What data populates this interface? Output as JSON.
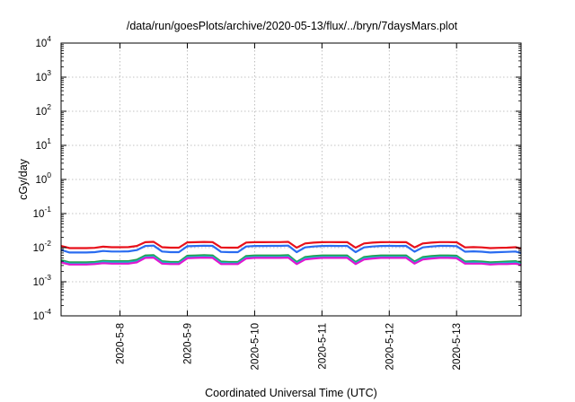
{
  "chart_data": {
    "type": "line",
    "title": "/data/run/goesPlots/archive/2020-05-13/flux/../bryn/7daysMars.plot",
    "xlabel": "Coordinated Universal Time (UTC)",
    "ylabel": "cGy/day",
    "yscale": "log",
    "ylim": [
      0.0001,
      10000
    ],
    "y_ticks": [
      {
        "base": "10",
        "exp": "-4"
      },
      {
        "base": "10",
        "exp": "-3"
      },
      {
        "base": "10",
        "exp": "-2"
      },
      {
        "base": "10",
        "exp": "-1"
      },
      {
        "base": "10",
        "exp": "0"
      },
      {
        "base": "10",
        "exp": "1"
      },
      {
        "base": "10",
        "exp": "2"
      },
      {
        "base": "10",
        "exp": "3"
      },
      {
        "base": "10",
        "exp": "4"
      }
    ],
    "x_ticks": [
      "2020-5-8",
      "2020-5-9",
      "2020-5-10",
      "2020-5-11",
      "2020-5-12",
      "2020-5-13"
    ],
    "xlim": [
      "2020-05-07 03:00",
      "2020-05-13 23:00"
    ],
    "grid": true,
    "legend": "none",
    "x": [
      "2020-05-07 03:00",
      "2020-05-07 06:00",
      "2020-05-07 09:00",
      "2020-05-07 12:00",
      "2020-05-07 15:00",
      "2020-05-07 18:00",
      "2020-05-07 21:00",
      "2020-05-08 00:00",
      "2020-05-08 03:00",
      "2020-05-08 06:00",
      "2020-05-08 09:00",
      "2020-05-08 12:00",
      "2020-05-08 15:00",
      "2020-05-08 18:00",
      "2020-05-08 21:00",
      "2020-05-09 00:00",
      "2020-05-09 03:00",
      "2020-05-09 06:00",
      "2020-05-09 09:00",
      "2020-05-09 12:00",
      "2020-05-09 15:00",
      "2020-05-09 18:00",
      "2020-05-09 21:00",
      "2020-05-10 00:00",
      "2020-05-10 03:00",
      "2020-05-10 06:00",
      "2020-05-10 09:00",
      "2020-05-10 12:00",
      "2020-05-10 15:00",
      "2020-05-10 18:00",
      "2020-05-10 21:00",
      "2020-05-11 00:00",
      "2020-05-11 03:00",
      "2020-05-11 06:00",
      "2020-05-11 09:00",
      "2020-05-11 12:00",
      "2020-05-11 15:00",
      "2020-05-11 18:00",
      "2020-05-11 21:00",
      "2020-05-12 00:00",
      "2020-05-12 03:00",
      "2020-05-12 06:00",
      "2020-05-12 09:00",
      "2020-05-12 12:00",
      "2020-05-12 15:00",
      "2020-05-12 18:00",
      "2020-05-12 21:00",
      "2020-05-13 00:00",
      "2020-05-13 03:00",
      "2020-05-13 06:00",
      "2020-05-13 09:00",
      "2020-05-13 12:00",
      "2020-05-13 15:00",
      "2020-05-13 18:00",
      "2020-05-13 21:00",
      "2020-05-13 23:00"
    ],
    "series": [
      {
        "color": "#e8101a",
        "values": [
          0.0112,
          0.0097,
          0.0097,
          0.0097,
          0.0099,
          0.0107,
          0.0103,
          0.0103,
          0.0104,
          0.0112,
          0.0145,
          0.0148,
          0.0103,
          0.01,
          0.01,
          0.0143,
          0.0145,
          0.0147,
          0.0146,
          0.0101,
          0.01,
          0.01,
          0.0141,
          0.0145,
          0.0145,
          0.0146,
          0.0146,
          0.0148,
          0.01,
          0.0133,
          0.014,
          0.0145,
          0.0146,
          0.0145,
          0.0146,
          0.01,
          0.0133,
          0.014,
          0.0145,
          0.0146,
          0.0145,
          0.0146,
          0.0102,
          0.0133,
          0.014,
          0.0146,
          0.0146,
          0.0144,
          0.0102,
          0.0104,
          0.0102,
          0.0097,
          0.0099,
          0.01,
          0.0103,
          0.0094
        ]
      },
      {
        "color": "#2a6cf0",
        "values": [
          0.0086,
          0.0072,
          0.0072,
          0.0072,
          0.0074,
          0.008,
          0.0077,
          0.0077,
          0.0078,
          0.0085,
          0.0112,
          0.0115,
          0.0077,
          0.0074,
          0.0074,
          0.011,
          0.0112,
          0.0114,
          0.0113,
          0.0075,
          0.0074,
          0.0074,
          0.0108,
          0.0112,
          0.0112,
          0.0113,
          0.0113,
          0.0115,
          0.0074,
          0.0102,
          0.0108,
          0.0112,
          0.0113,
          0.0112,
          0.0113,
          0.0074,
          0.0102,
          0.0108,
          0.0112,
          0.0113,
          0.0112,
          0.0113,
          0.0076,
          0.0102,
          0.0108,
          0.0113,
          0.0113,
          0.0111,
          0.0076,
          0.0078,
          0.0076,
          0.0072,
          0.0074,
          0.0075,
          0.0077,
          0.0069
        ]
      },
      {
        "color": "#1f9e4a",
        "values": [
          0.0043,
          0.0037,
          0.0037,
          0.0037,
          0.0038,
          0.0041,
          0.004,
          0.004,
          0.004,
          0.0044,
          0.0059,
          0.006,
          0.004,
          0.0038,
          0.0038,
          0.0058,
          0.0059,
          0.006,
          0.0059,
          0.0039,
          0.0038,
          0.0038,
          0.0057,
          0.0059,
          0.0059,
          0.0059,
          0.0059,
          0.006,
          0.0038,
          0.0053,
          0.0057,
          0.0059,
          0.0059,
          0.0059,
          0.0059,
          0.0038,
          0.0053,
          0.0057,
          0.0059,
          0.0059,
          0.0059,
          0.0059,
          0.0039,
          0.0053,
          0.0057,
          0.0059,
          0.0059,
          0.0058,
          0.0039,
          0.004,
          0.0039,
          0.0037,
          0.0038,
          0.0039,
          0.004,
          0.0036
        ]
      },
      {
        "color": "#18b6c8",
        "values": [
          0.004,
          0.0034,
          0.0034,
          0.0034,
          0.0035,
          0.0038,
          0.0037,
          0.0037,
          0.0037,
          0.004,
          0.0054,
          0.0055,
          0.0037,
          0.0035,
          0.0035,
          0.0053,
          0.0054,
          0.0055,
          0.0054,
          0.0036,
          0.0035,
          0.0035,
          0.0052,
          0.0054,
          0.0054,
          0.0054,
          0.0054,
          0.0055,
          0.0035,
          0.0049,
          0.0052,
          0.0054,
          0.0054,
          0.0054,
          0.0054,
          0.0035,
          0.0049,
          0.0052,
          0.0054,
          0.0054,
          0.0054,
          0.0054,
          0.0036,
          0.0049,
          0.0052,
          0.0054,
          0.0054,
          0.0053,
          0.0036,
          0.0037,
          0.0036,
          0.0034,
          0.0035,
          0.0036,
          0.0037,
          0.0033
        ]
      },
      {
        "color": "#e018d0",
        "values": [
          0.0037,
          0.0032,
          0.0032,
          0.0032,
          0.0033,
          0.0035,
          0.0034,
          0.0034,
          0.0034,
          0.0037,
          0.005,
          0.0051,
          0.0034,
          0.0033,
          0.0033,
          0.0049,
          0.005,
          0.0051,
          0.005,
          0.0033,
          0.0033,
          0.0033,
          0.0048,
          0.005,
          0.005,
          0.005,
          0.005,
          0.0051,
          0.0033,
          0.0045,
          0.0048,
          0.005,
          0.005,
          0.005,
          0.005,
          0.0033,
          0.0045,
          0.0048,
          0.005,
          0.005,
          0.005,
          0.005,
          0.0034,
          0.0045,
          0.0048,
          0.005,
          0.005,
          0.0049,
          0.0034,
          0.0034,
          0.0034,
          0.0032,
          0.0033,
          0.0033,
          0.0034,
          0.0031
        ]
      }
    ]
  }
}
